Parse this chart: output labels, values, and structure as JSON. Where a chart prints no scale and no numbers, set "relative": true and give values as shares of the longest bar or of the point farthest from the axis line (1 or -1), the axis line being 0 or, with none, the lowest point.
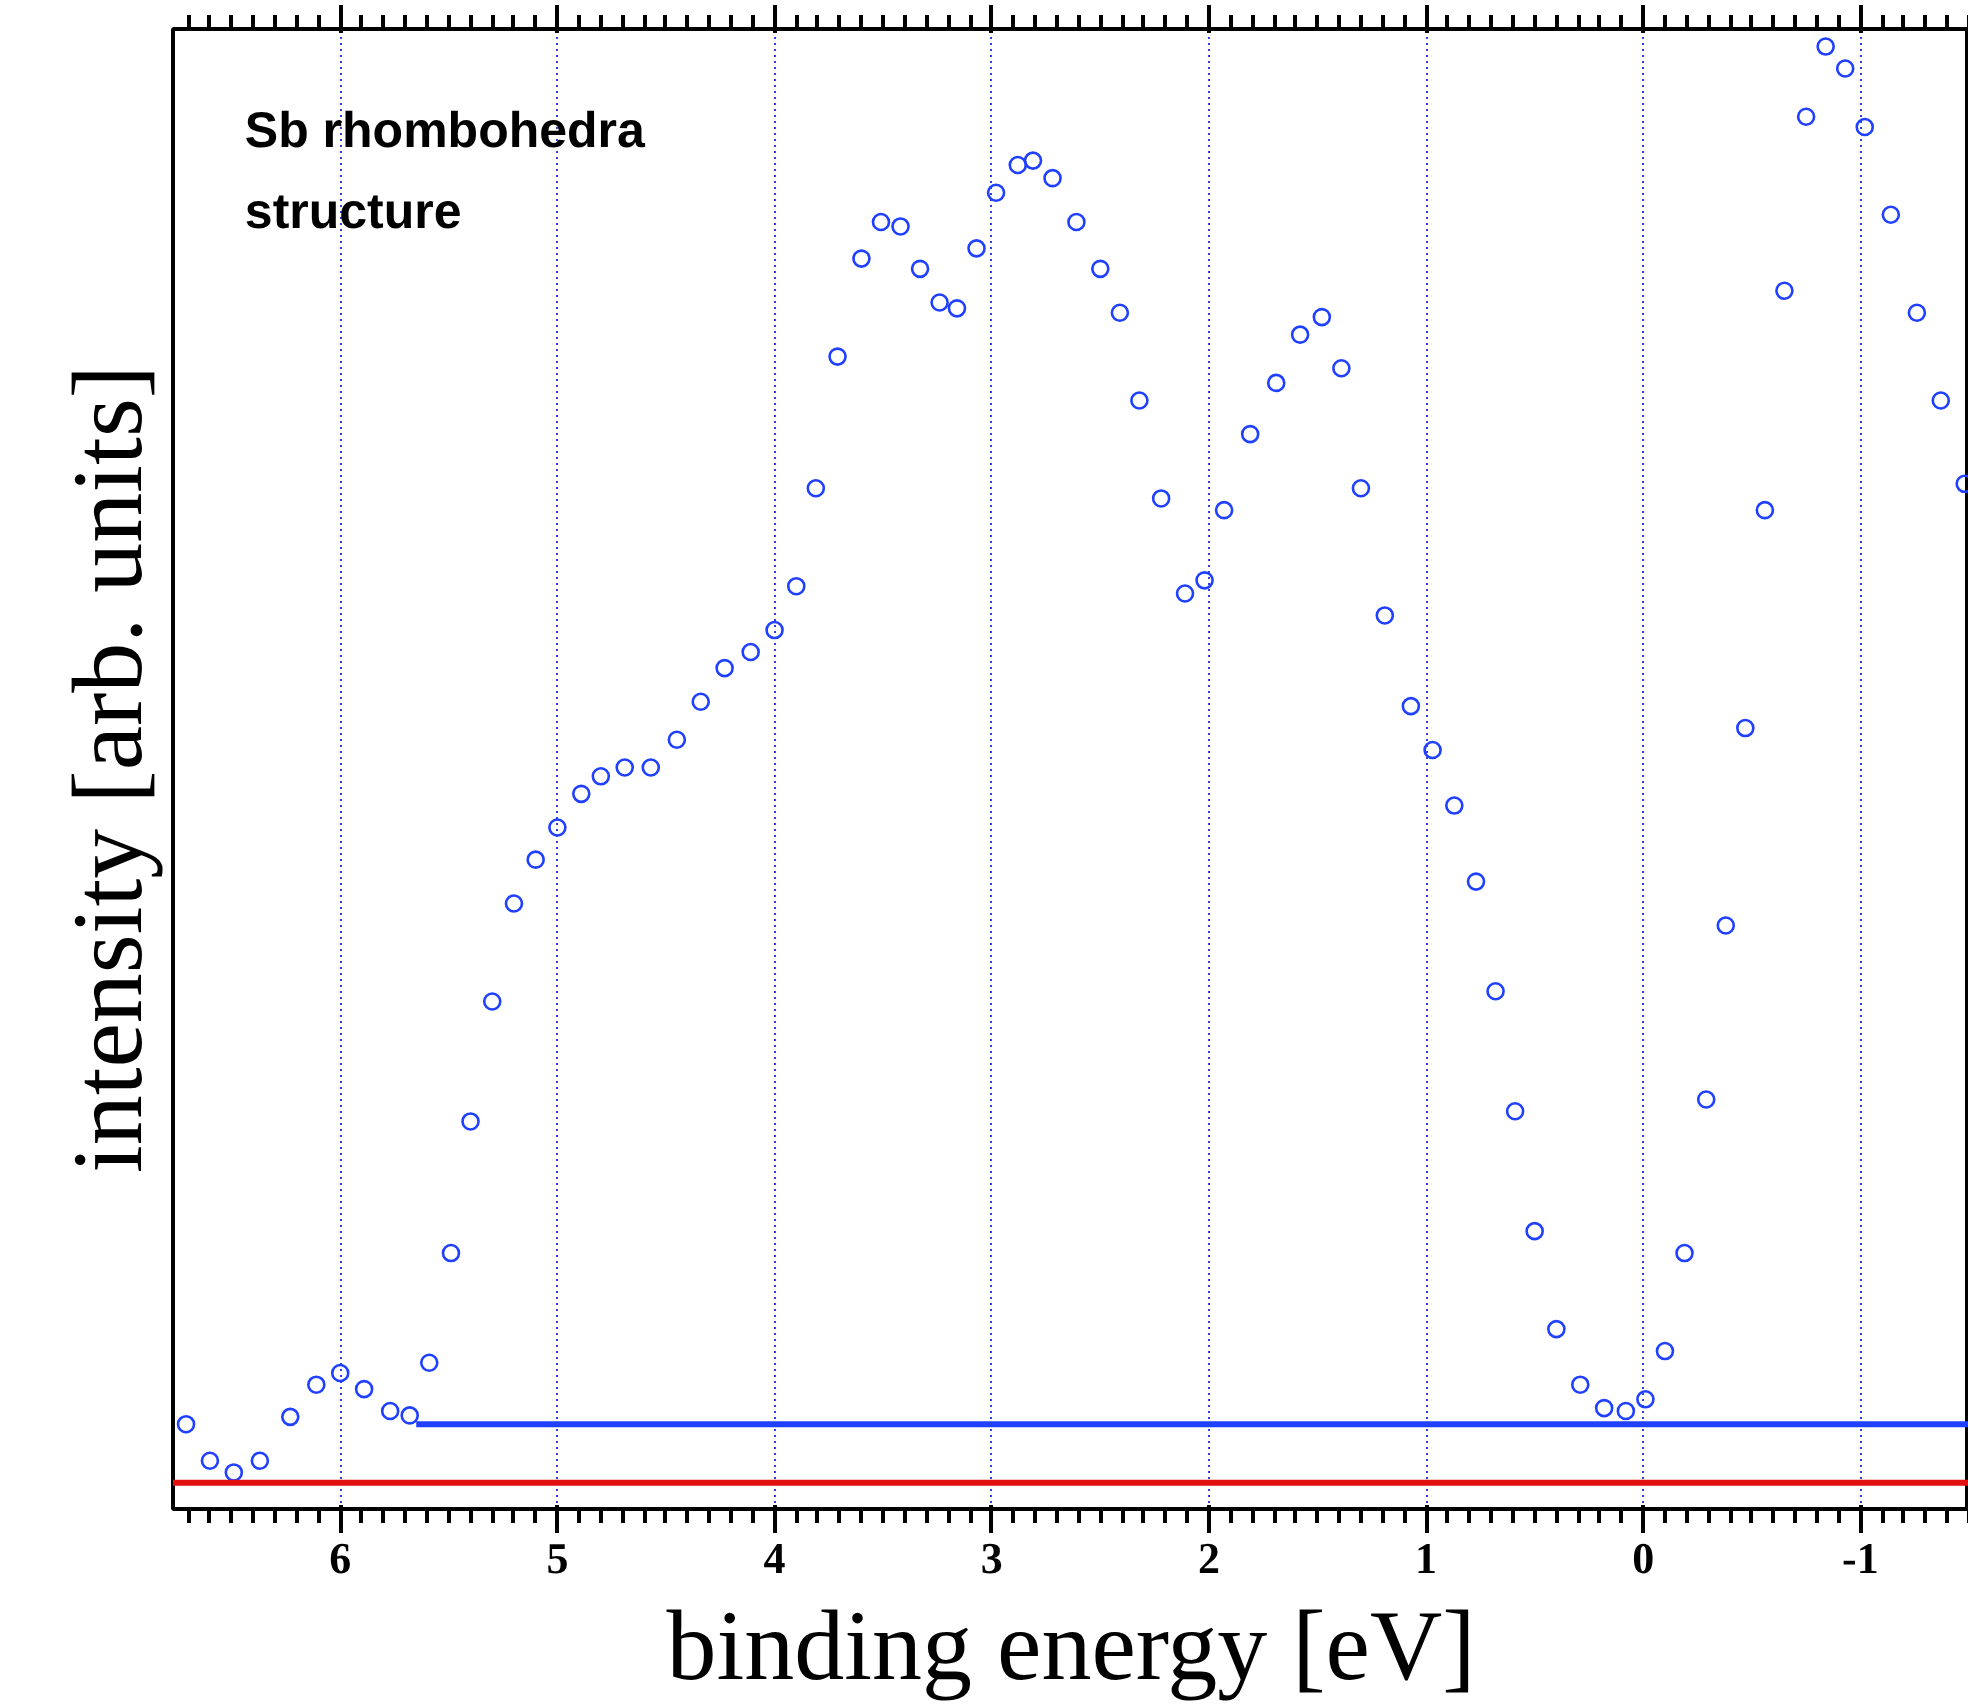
{
  "chart_data": {
    "type": "scatter",
    "relative": true,
    "xlabel": "binding energy [eV]",
    "ylabel": "intensity [arb. units]",
    "annotations": [
      "Sb rhombohedra\nstructure"
    ],
    "xlim": [
      6.77,
      -1.5
    ],
    "xticks": [
      6,
      5,
      4,
      3,
      2,
      1,
      0,
      -1
    ],
    "grid": "x",
    "series": [
      {
        "marker": "circle",
        "color": "#2040ff",
        "x": [
          6.71,
          6.6,
          6.49,
          6.37,
          6.23,
          6.11,
          6.0,
          5.89,
          5.77,
          5.68,
          5.59,
          5.49,
          5.4,
          5.3,
          5.2,
          5.1,
          5.0,
          4.89,
          4.8,
          4.69,
          4.57,
          4.45,
          4.34,
          4.23,
          4.11,
          4.0,
          3.9,
          3.81,
          3.71,
          3.6,
          3.51,
          3.42,
          3.33,
          3.24,
          3.16,
          3.07,
          2.98,
          2.88,
          2.81,
          2.72,
          2.61,
          2.5,
          2.41,
          2.32,
          2.22,
          2.11,
          2.02,
          1.93,
          1.81,
          1.69,
          1.58,
          1.48,
          1.39,
          1.3,
          1.19,
          1.07,
          0.97,
          0.87,
          0.77,
          0.68,
          0.59,
          0.5,
          0.4,
          0.29,
          0.18,
          0.08,
          -0.01,
          -0.1,
          -0.19,
          -0.29,
          -0.38,
          -0.47,
          -0.56,
          -0.65,
          -0.75,
          -0.84,
          -0.93,
          -1.02,
          -1.14,
          -1.26,
          -1.37,
          -1.48
        ],
        "values": [
          0.058,
          0.033,
          0.025,
          0.033,
          0.063,
          0.085,
          0.093,
          0.082,
          0.067,
          0.064,
          0.1,
          0.175,
          0.265,
          0.347,
          0.414,
          0.444,
          0.466,
          0.489,
          0.501,
          0.507,
          0.507,
          0.526,
          0.552,
          0.575,
          0.586,
          0.601,
          0.631,
          0.698,
          0.788,
          0.855,
          0.88,
          0.877,
          0.848,
          0.825,
          0.821,
          0.862,
          0.9,
          0.919,
          0.922,
          0.91,
          0.88,
          0.848,
          0.818,
          0.758,
          0.691,
          0.626,
          0.635,
          0.683,
          0.735,
          0.77,
          0.803,
          0.815,
          0.78,
          0.698,
          0.611,
          0.549,
          0.519,
          0.481,
          0.429,
          0.354,
          0.272,
          0.19,
          0.123,
          0.085,
          0.069,
          0.067,
          0.075,
          0.108,
          0.175,
          0.28,
          0.399,
          0.534,
          0.683,
          0.833,
          0.952,
          1.0,
          0.985,
          0.945,
          0.885,
          0.818,
          0.758,
          0.701
        ]
      },
      {
        "type": "line",
        "color": "#2040ff",
        "x": [
          5.65,
          -1.5
        ],
        "values": [
          0.058,
          0.058
        ]
      }
    ],
    "ref_lines": [
      {
        "axis": "y",
        "value": 0.018,
        "color": "#e01010"
      }
    ]
  }
}
